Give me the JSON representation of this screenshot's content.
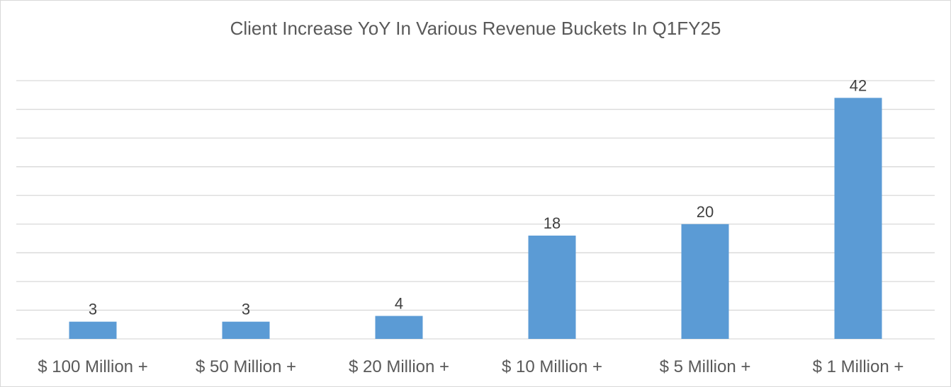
{
  "chart_data": {
    "type": "bar",
    "title": "Client Increase YoY  In Various Revenue Buckets In Q1FY25",
    "categories": [
      "$ 100 Million +",
      "$ 50 Million +",
      "$ 20 Million +",
      "$ 10 Million +",
      "$ 5 Million +",
      "$ 1 Million +"
    ],
    "values": [
      3,
      3,
      4,
      18,
      20,
      42
    ],
    "ylim": [
      0,
      45
    ],
    "grid": true,
    "y_tick_labels_shown": false,
    "data_labels": true,
    "bar_color": "#5B9BD5"
  }
}
